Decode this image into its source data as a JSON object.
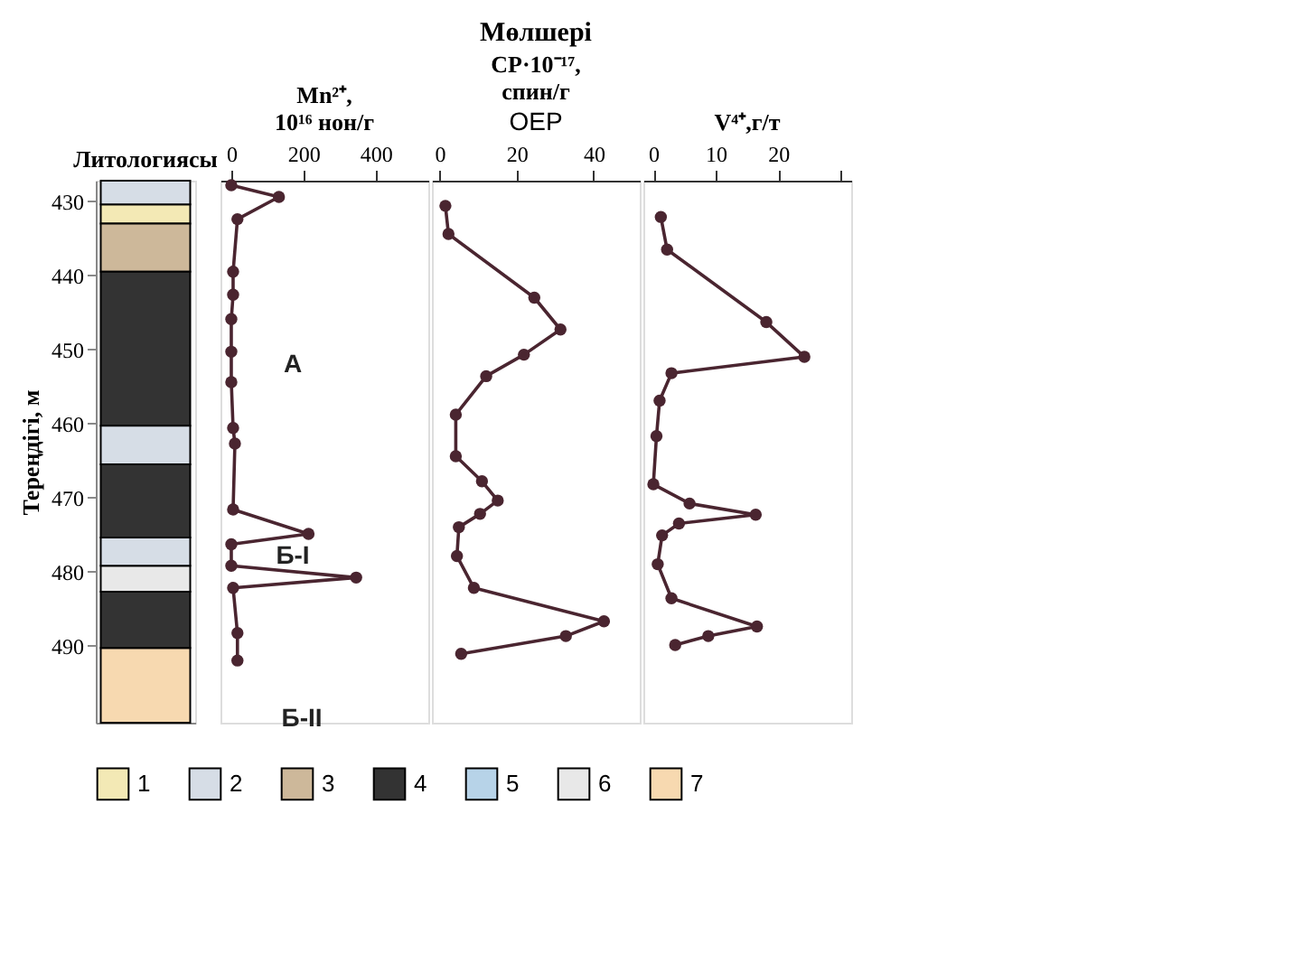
{
  "chart_data": [
    {
      "type": "bar",
      "title": "Литологиясы",
      "ylabel": "Тереңдігі, м",
      "categories": [
        null
      ],
      "ylim": [
        500.4,
        427.2
      ],
      "yticks": [
        430,
        440,
        450,
        460,
        470,
        480,
        490
      ],
      "tick_labels": "y",
      "legend": "bottom",
      "grid": false,
      "series": [
        {
          "name": "1",
          "color": "#f3e9b5",
          "values": [
            2.6
          ],
          "base": [
            430.4
          ]
        },
        {
          "name": "2",
          "color": "#d6dde6",
          "values": [
            3.2
          ],
          "base": [
            427.2
          ]
        },
        {
          "name": "3",
          "color": "#cdb89a",
          "values": [
            6.5
          ],
          "base": [
            433
          ]
        },
        {
          "name": "4",
          "color": "#333333",
          "values": [
            20.8
          ],
          "base": [
            439.5
          ]
        },
        {
          "name": "5",
          "color": "#b7d3e8",
          "values": [
            null
          ],
          "base": [
            null
          ]
        },
        {
          "name": "6",
          "color": "#e8e8e8",
          "values": [
            3.5
          ],
          "base": [
            479.2
          ]
        },
        {
          "name": "7",
          "color": "#f7d9b0",
          "values": [
            10.1
          ],
          "base": [
            490.3
          ]
        },
        {
          "color": "#d6dde6",
          "values": [
            5.2
          ],
          "base": [
            460.3
          ]
        },
        {
          "color": "#333333",
          "values": [
            9.9
          ],
          "base": [
            465.5
          ]
        },
        {
          "color": "#d6dde6",
          "values": [
            3.8
          ],
          "base": [
            475.4
          ]
        },
        {
          "color": "#333333",
          "values": [
            7.6
          ],
          "base": [
            482.7
          ]
        }
      ]
    },
    {
      "type": "line",
      "title": "Mn²⁺,\n10¹⁶ нон/г",
      "xlim": [
        -30,
        546
      ],
      "xticks": [
        0,
        200,
        400
      ],
      "ylim": [
        500.4,
        427.2
      ],
      "tick_labels": "x",
      "marker": "circle",
      "line_style": "solid",
      "grid": false,
      "annotations": [
        "Мөлшері",
        "А",
        "Б-І",
        "Б-ІІ"
      ],
      "series": [
        {
          "color": "#4a2530",
          "x": [
            0,
            132,
            17,
            5,
            5,
            0,
            0,
            0,
            5,
            10,
            5,
            214,
            0,
            0,
            346,
            5,
            17,
            17
          ],
          "values": [
            427.8,
            429.4,
            432.4,
            439.5,
            442.6,
            445.9,
            450.3,
            454.4,
            460.6,
            462.7,
            471.6,
            474.9,
            476.3,
            479.2,
            480.8,
            482.2,
            488.3,
            492.0
          ]
        }
      ]
    },
    {
      "type": "line",
      "title": "CP·10⁻¹⁷,\nспин/г",
      "xlim": [
        -2,
        52
      ],
      "xticks": [
        0,
        20,
        40
      ],
      "ylim": [
        500.4,
        427.2
      ],
      "tick_labels": "x",
      "marker": "circle",
      "line_style": "solid",
      "grid": false,
      "annotations": [
        "OEP"
      ],
      "series": [
        {
          "color": "#4a2530",
          "x": [
            1.5,
            2.3,
            24.6,
            31.4,
            21.9,
            12.1,
            4.2,
            4.2,
            11.0,
            15.1,
            10.5,
            5.0,
            4.5,
            8.9,
            42.7,
            32.8,
            5.6
          ],
          "values": [
            430.6,
            434.4,
            443.0,
            447.3,
            450.7,
            453.6,
            458.8,
            464.4,
            467.8,
            470.4,
            472.2,
            474.0,
            477.9,
            482.2,
            486.7,
            488.7,
            491.1
          ]
        }
      ]
    },
    {
      "type": "line",
      "title": "V⁴⁺,г/т",
      "xlim": [
        -1.6,
        31.7
      ],
      "xticks": [
        0,
        10,
        20,
        {
          "value": 30,
          "label": null
        }
      ],
      "ylim": [
        500.4,
        427.2
      ],
      "tick_labels": "x",
      "marker": "circle",
      "line_style": "solid",
      "grid": false,
      "series": [
        {
          "color": "#4a2530",
          "x": [
            1.2,
            2.2,
            18.1,
            24.2,
            2.9,
            1.0,
            0.5,
            0,
            5.8,
            16.4,
            4.1,
            1.4,
            0.7,
            2.9,
            16.6,
            8.8,
            3.5
          ],
          "values": [
            432.1,
            436.5,
            446.3,
            451.0,
            453.2,
            456.9,
            461.7,
            468.2,
            470.8,
            472.3,
            473.5,
            475.1,
            479.0,
            483.6,
            487.4,
            488.7,
            489.9
          ]
        }
      ]
    }
  ]
}
